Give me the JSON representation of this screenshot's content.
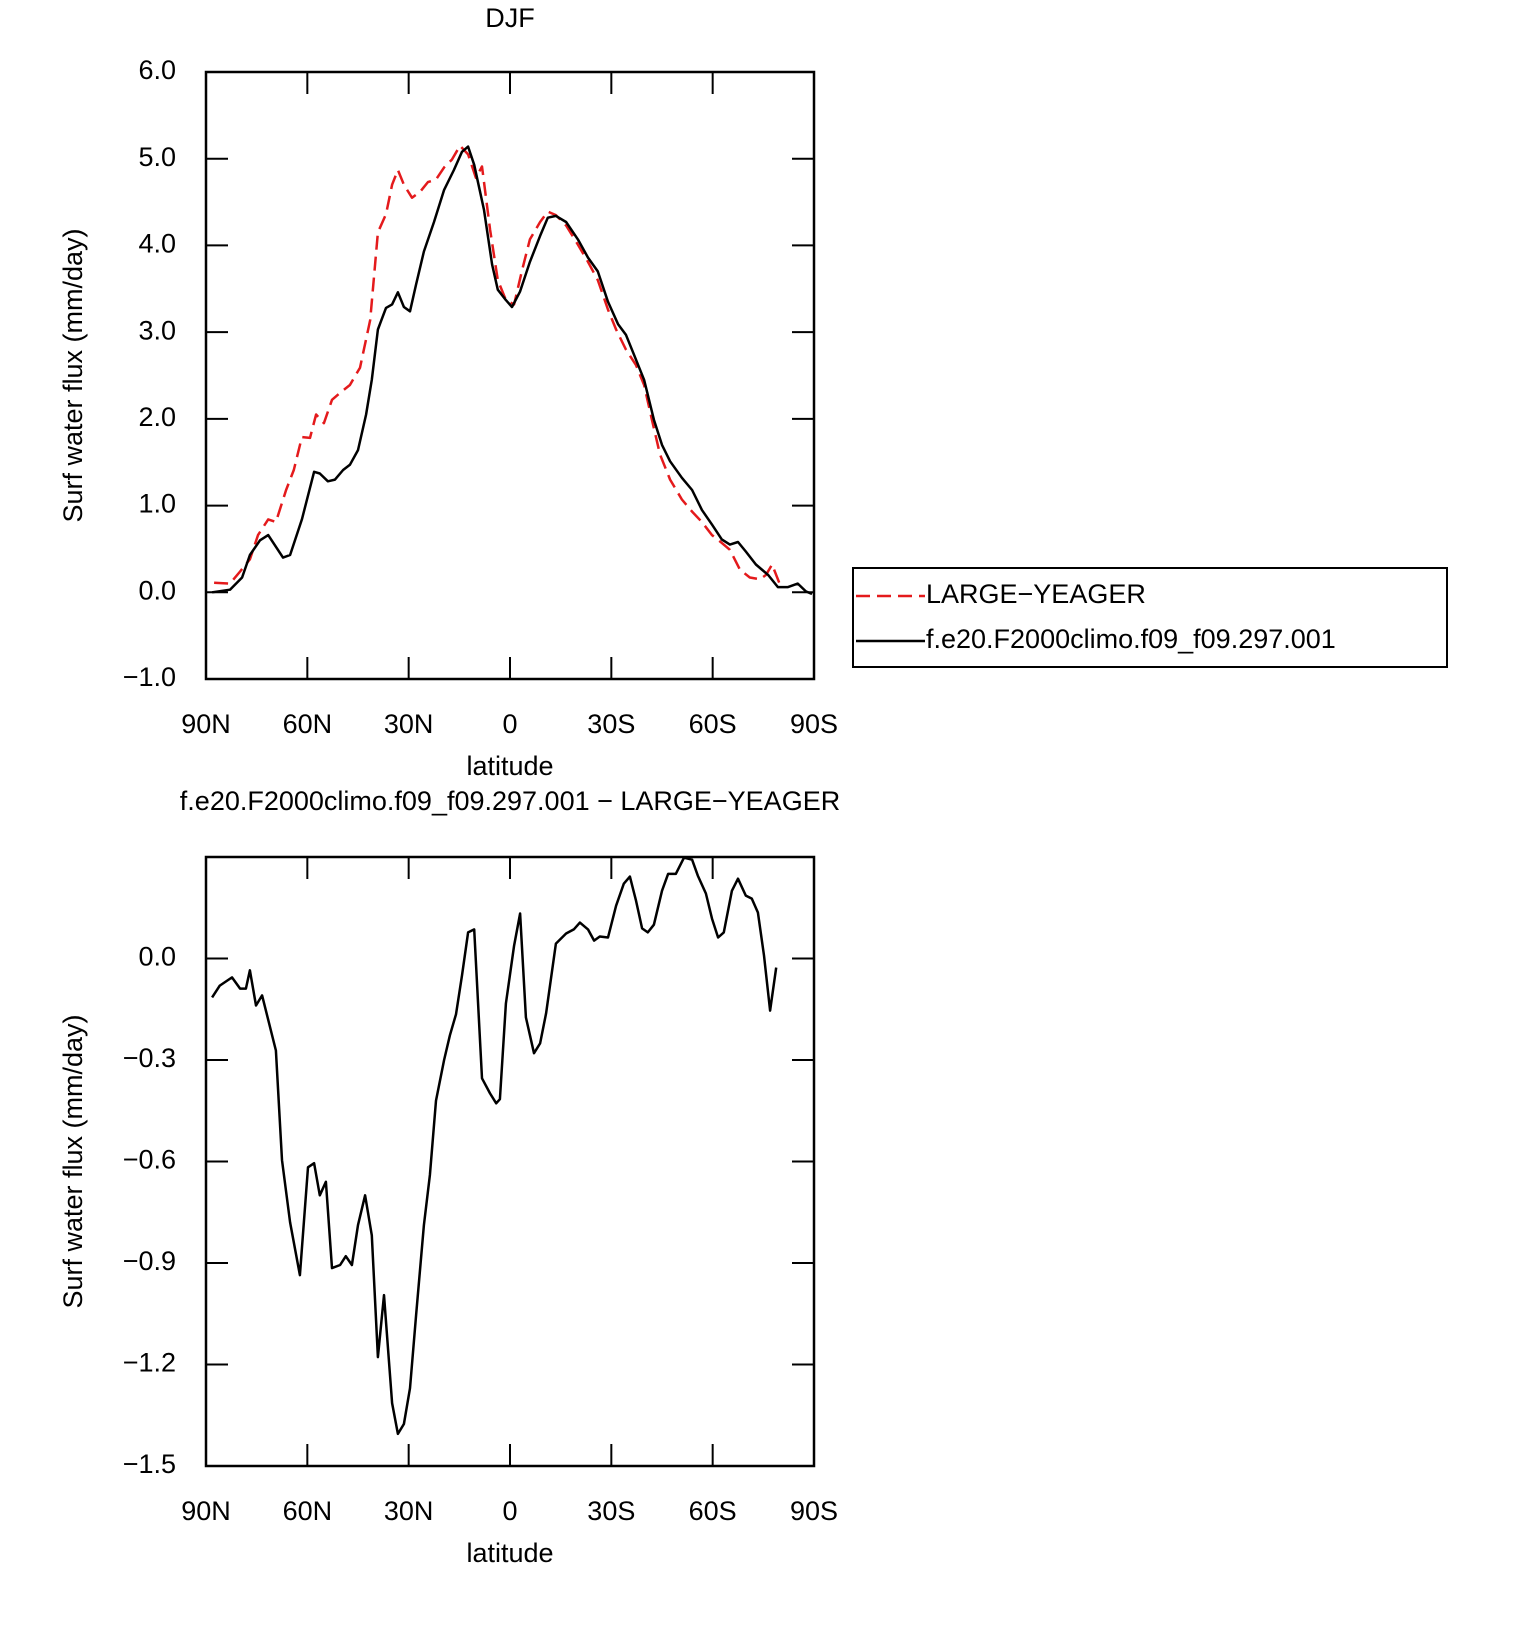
{
  "chart_data": [
    {
      "type": "line",
      "title": "DJF",
      "xlabel": "latitude",
      "ylabel": "Surf water flux (mm/day)",
      "xlim": [
        90,
        -90
      ],
      "xticks": [
        {
          "value": 90,
          "label": "90N"
        },
        {
          "value": 60,
          "label": "60N"
        },
        {
          "value": 30,
          "label": "30N"
        },
        0,
        {
          "value": -30,
          "label": "30S"
        },
        {
          "value": -60,
          "label": "60S"
        },
        {
          "value": -90,
          "label": "90S"
        }
      ],
      "ylim": [
        -1,
        6
      ],
      "yticks": [
        {
          "value": -1,
          "label": "−1.0"
        },
        {
          "value": 0,
          "label": "0.0"
        },
        {
          "value": 1,
          "label": "1.0"
        },
        {
          "value": 2,
          "label": "2.0"
        },
        {
          "value": 3,
          "label": "3.0"
        },
        {
          "value": 4,
          "label": "4.0"
        },
        {
          "value": 5,
          "label": "5.0"
        },
        {
          "value": 6,
          "label": "6.0"
        }
      ],
      "legend": "right",
      "series": [
        {
          "name": "LARGE−YEAGER",
          "color": "#e41a1c",
          "dash": true,
          "x": [
            87.6,
            82.9,
            79.9,
            77,
            74.6,
            71.6,
            69.3,
            66.3,
            64,
            61.6,
            59.2,
            57.4,
            55.1,
            52.7,
            50.3,
            47.4,
            44.4,
            41.4,
            39.1,
            36.7,
            34.9,
            33.2,
            31.4,
            29,
            26.6,
            24.3,
            21.9,
            19.5,
            17.2,
            14.8,
            12.4,
            10.1,
            8.3,
            5.9,
            3.6,
            1.2,
            -1.2,
            -3.6,
            -5.9,
            -8.9,
            -11.2,
            -13.6,
            -16.6,
            -20.1,
            -23.1,
            -26,
            -29,
            -31.4,
            -34.3,
            -37.3,
            -39.7,
            -42,
            -44.4,
            -47.4,
            -50.9,
            -53.9,
            -56.8,
            -59.8,
            -62.7,
            -65.1,
            -68.1,
            -71,
            -74,
            -75.8,
            -77.6,
            -79.9
          ],
          "values": [
            0.11,
            0.1,
            0.24,
            0.38,
            0.66,
            0.84,
            0.81,
            1.18,
            1.41,
            1.79,
            1.78,
            2.05,
            1.95,
            2.22,
            2.3,
            2.39,
            2.59,
            3.14,
            4.15,
            4.36,
            4.7,
            4.87,
            4.7,
            4.55,
            4.62,
            4.73,
            4.76,
            4.9,
            4.99,
            5.15,
            5.05,
            4.78,
            4.91,
            4.18,
            3.6,
            3.37,
            3.32,
            3.72,
            4.07,
            4.27,
            4.39,
            4.35,
            4.23,
            4.01,
            3.81,
            3.6,
            3.26,
            3.03,
            2.8,
            2.62,
            2.39,
            1.99,
            1.59,
            1.3,
            1.07,
            0.93,
            0.81,
            0.66,
            0.57,
            0.49,
            0.26,
            0.17,
            0.15,
            0.2,
            0.32,
            0.09
          ]
        },
        {
          "name": "f.e20.F2000climo.f09_f09.297.001",
          "color": "#000000",
          "dash": false,
          "x": [
            88.2,
            82.9,
            79.3,
            77,
            74,
            71.6,
            67.2,
            65.1,
            61.6,
            58,
            56.3,
            53.9,
            51.8,
            49.4,
            47.4,
            45,
            42.6,
            40.9,
            39.1,
            36.7,
            34.9,
            33.2,
            31.4,
            29.6,
            27.8,
            25.5,
            22.5,
            19.5,
            16.6,
            14.2,
            12.4,
            10.6,
            7.7,
            5.3,
            3.6,
            1.2,
            -0.6,
            -3,
            -5.9,
            -8.9,
            -11.2,
            -13.6,
            -16.6,
            -20.1,
            -23.1,
            -26,
            -29,
            -32,
            -34.3,
            -36.7,
            -39.7,
            -42.6,
            -45,
            -47.4,
            -50.9,
            -53.9,
            -56.8,
            -59.8,
            -62.7,
            -65.1,
            -67.5,
            -69.8,
            -72.8,
            -76.4,
            -79.3,
            -82.3,
            -85.2,
            -87.6,
            -89.4
          ],
          "values": [
            0,
            0.03,
            0.17,
            0.43,
            0.6,
            0.66,
            0.4,
            0.43,
            0.84,
            1.39,
            1.37,
            1.28,
            1.3,
            1.41,
            1.47,
            1.64,
            2.05,
            2.45,
            3.03,
            3.28,
            3.32,
            3.46,
            3.29,
            3.24,
            3.55,
            3.93,
            4.27,
            4.64,
            4.87,
            5.08,
            5.14,
            4.93,
            4.41,
            3.78,
            3.49,
            3.37,
            3.29,
            3.47,
            3.81,
            4.11,
            4.32,
            4.34,
            4.27,
            4.07,
            3.86,
            3.7,
            3.35,
            3.09,
            2.97,
            2.74,
            2.45,
            1.99,
            1.7,
            1.51,
            1.32,
            1.18,
            0.95,
            0.78,
            0.61,
            0.55,
            0.58,
            0.47,
            0.32,
            0.2,
            0.06,
            0.06,
            0.1,
            0.01,
            -0.02
          ]
        }
      ]
    },
    {
      "type": "line",
      "title": "f.e20.F2000climo.f09_f09.297.001 − LARGE−YEAGER",
      "xlabel": "latitude",
      "ylabel": "Surf water flux (mm/day)",
      "xlim": [
        90,
        -90
      ],
      "xticks": [
        {
          "value": 90,
          "label": "90N"
        },
        {
          "value": 60,
          "label": "60N"
        },
        {
          "value": 30,
          "label": "30N"
        },
        0,
        {
          "value": -30,
          "label": "30S"
        },
        {
          "value": -60,
          "label": "60S"
        },
        {
          "value": -90,
          "label": "90S"
        }
      ],
      "ylim": [
        -1.5,
        0.3
      ],
      "yticks": [
        {
          "value": -1.5,
          "label": "−1.5"
        },
        {
          "value": -1.2,
          "label": "−1.2"
        },
        {
          "value": -0.9,
          "label": "−0.9"
        },
        {
          "value": -0.6,
          "label": "−0.6"
        },
        {
          "value": -0.3,
          "label": "−0.3"
        },
        {
          "value": 0,
          "label": "0.0"
        }
      ],
      "series": [
        {
          "color": "#000000",
          "dash": false,
          "x": [
            88.2,
            85.9,
            82.3,
            79.9,
            78.2,
            77,
            75.2,
            73.4,
            69.3,
            67.5,
            65.1,
            62.2,
            59.8,
            58,
            56.3,
            54.5,
            52.7,
            50.3,
            48.6,
            46.8,
            45,
            42.9,
            40.9,
            39.1,
            37.3,
            34.9,
            33.2,
            31.4,
            29.6,
            27.8,
            25.5,
            23.7,
            21.9,
            19.5,
            17.8,
            16,
            14.2,
            12.4,
            10.6,
            8.3,
            5.9,
            4.1,
            3,
            1.2,
            -1.2,
            -3,
            -4.7,
            -7.1,
            -8.9,
            -10.7,
            -13.6,
            -16.6,
            -18.9,
            -20.7,
            -23.1,
            -24.9,
            -26.6,
            -29,
            -31.4,
            -33.7,
            -35.5,
            -37.3,
            -39.1,
            -40.8,
            -42.6,
            -45,
            -46.8,
            -49.1,
            -51.5,
            -53.9,
            -55.6,
            -58,
            -59.8,
            -61.6,
            -63.3,
            -65.7,
            -67.5,
            -69.8,
            -71.6,
            -73.4,
            -75.2,
            -77,
            -78.8
          ],
          "values": [
            -0.115,
            -0.08,
            -0.056,
            -0.089,
            -0.089,
            -0.035,
            -0.139,
            -0.109,
            -0.272,
            -0.596,
            -0.78,
            -0.936,
            -0.617,
            -0.605,
            -0.7,
            -0.66,
            -0.915,
            -0.906,
            -0.88,
            -0.906,
            -0.788,
            -0.7,
            -0.818,
            -1.178,
            -0.995,
            -1.314,
            -1.405,
            -1.376,
            -1.27,
            -1.054,
            -0.788,
            -0.64,
            -0.42,
            -0.3,
            -0.227,
            -0.165,
            -0.05,
            0.077,
            0.086,
            -0.354,
            -0.399,
            -0.428,
            -0.416,
            -0.133,
            0.038,
            0.133,
            -0.174,
            -0.28,
            -0.251,
            -0.162,
            0.044,
            0.074,
            0.086,
            0.106,
            0.086,
            0.053,
            0.065,
            0.062,
            0.156,
            0.221,
            0.242,
            0.171,
            0.089,
            0.077,
            0.1,
            0.2,
            0.25,
            0.25,
            0.298,
            0.292,
            0.245,
            0.192,
            0.118,
            0.062,
            0.077,
            0.2,
            0.236,
            0.186,
            0.177,
            0.136,
            0.009,
            -0.154,
            -0.027
          ]
        }
      ]
    }
  ]
}
